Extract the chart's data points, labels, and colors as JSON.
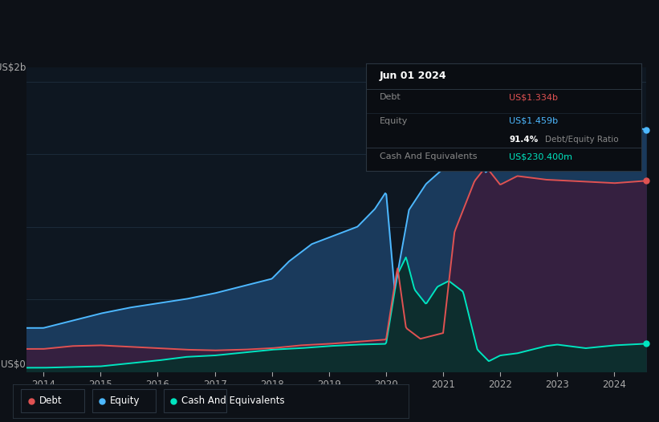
{
  "bg_color": "#0d1117",
  "plot_bg_color": "#0e1721",
  "grid_color": "#1c2b3a",
  "title_box": {
    "date": "Jun 01 2024",
    "debt_label": "Debt",
    "debt_value": "US$1.334b",
    "debt_color": "#e05252",
    "equity_label": "Equity",
    "equity_value": "US$1.459b",
    "equity_color": "#4db8ff",
    "ratio_value": "91.4%",
    "ratio_label": "Debt/Equity Ratio",
    "cash_label": "Cash And Equivalents",
    "cash_value": "US$230.400m",
    "cash_color": "#00e5c0"
  },
  "y_label_top": "US$2b",
  "y_label_bottom": "US$0",
  "x_ticks": [
    2014,
    2015,
    2016,
    2017,
    2018,
    2019,
    2020,
    2021,
    2022,
    2023,
    2024
  ],
  "debt_color": "#e05252",
  "equity_color": "#4db8ff",
  "cash_color": "#00e5c0",
  "equity_fill_color": "#1a3a5c",
  "debt_fill_color": "#352040",
  "cash_fill_color": "#0d2e2e",
  "legend": [
    {
      "label": "Debt",
      "color": "#e05252"
    },
    {
      "label": "Equity",
      "color": "#4db8ff"
    },
    {
      "label": "Cash And Equivalents",
      "color": "#00e5c0"
    }
  ]
}
